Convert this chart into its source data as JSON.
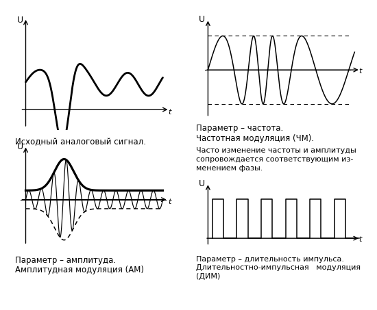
{
  "bg_color": "#ffffff",
  "label_top_left": "Исходный аналоговый сигнал.",
  "label_bottom_left_1": "Параметр – амплитуда.",
  "label_bottom_left_2": "Амплитудная модуляция (АМ)",
  "label_top_right_1": "Параметр – частота.",
  "label_top_right_2": "Частотная модуляция (ЧМ).",
  "label_mid_right_1": "Часто изменение частоты и амплитуды",
  "label_mid_right_2": "сопровождается соответствующим из-",
  "label_mid_right_3": "менением фазы.",
  "label_bottom_right_1": "Параметр – длительность импульса.",
  "label_bottom_right_2": "Длительностно-импульсная   модуляция",
  "label_bottom_right_3": "(ДИМ)"
}
